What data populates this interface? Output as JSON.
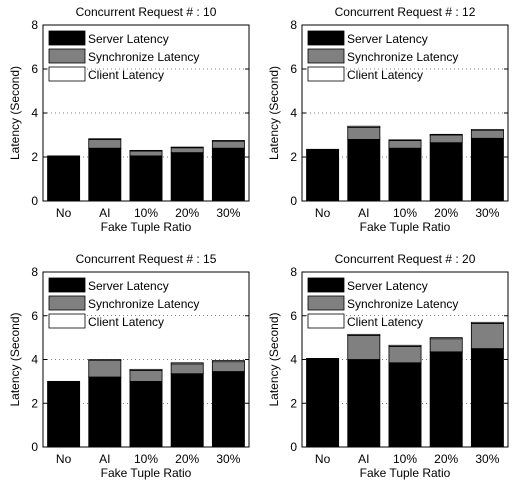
{
  "colors": {
    "server": "#000000",
    "synchronize": "#808080",
    "client": "#ffffff"
  },
  "chart_data": [
    {
      "type": "bar",
      "stacked": true,
      "title": "Concurrent Request # : 10",
      "xlabel": "Fake Tuple Ratio",
      "ylabel": "Latency (Second)",
      "categories": [
        "No",
        "AI",
        "10%",
        "20%",
        "30%"
      ],
      "ylim": [
        0,
        8
      ],
      "yticks": [
        "0",
        "2",
        "4",
        "6",
        "8"
      ],
      "grid": "y-dotted",
      "legend": "top-left",
      "series": [
        {
          "name": "Server Latency",
          "values": [
            2.05,
            2.4,
            2.05,
            2.2,
            2.4
          ]
        },
        {
          "name": "Synchronize Latency",
          "values": [
            0.0,
            0.4,
            0.22,
            0.22,
            0.32
          ]
        },
        {
          "name": "Client Latency",
          "values": [
            0.0,
            0.03,
            0.03,
            0.03,
            0.03
          ]
        }
      ]
    },
    {
      "type": "bar",
      "stacked": true,
      "title": "Concurrent Request # : 12",
      "xlabel": "Fake Tuple Ratio",
      "ylabel": "Latency (Second)",
      "categories": [
        "No",
        "AI",
        "10%",
        "20%",
        "30%"
      ],
      "ylim": [
        0,
        8
      ],
      "yticks": [
        "0",
        "2",
        "4",
        "6",
        "8"
      ],
      "grid": "y-dotted",
      "legend": "top-left",
      "series": [
        {
          "name": "Server Latency",
          "values": [
            2.35,
            2.8,
            2.4,
            2.65,
            2.85
          ]
        },
        {
          "name": "Synchronize Latency",
          "values": [
            0.0,
            0.55,
            0.35,
            0.35,
            0.35
          ]
        },
        {
          "name": "Client Latency",
          "values": [
            0.0,
            0.05,
            0.03,
            0.03,
            0.05
          ]
        }
      ]
    },
    {
      "type": "bar",
      "stacked": true,
      "title": "Concurrent Request # : 15",
      "xlabel": "Fake Tuple Ratio",
      "ylabel": "Latency (Second)",
      "categories": [
        "No",
        "AI",
        "10%",
        "20%",
        "30%"
      ],
      "ylim": [
        0,
        8
      ],
      "yticks": [
        "0",
        "2",
        "4",
        "6",
        "8"
      ],
      "grid": "y-dotted",
      "legend": "top-left",
      "series": [
        {
          "name": "Server Latency",
          "values": [
            3.0,
            3.2,
            3.0,
            3.35,
            3.45
          ]
        },
        {
          "name": "Synchronize Latency",
          "values": [
            0.0,
            0.75,
            0.5,
            0.45,
            0.45
          ]
        },
        {
          "name": "Client Latency",
          "values": [
            0.0,
            0.05,
            0.05,
            0.05,
            0.05
          ]
        }
      ]
    },
    {
      "type": "bar",
      "stacked": true,
      "title": "Concurrent Request # : 20",
      "xlabel": "Fake Tuple Ratio",
      "ylabel": "Latency (Second)",
      "categories": [
        "No",
        "AI",
        "10%",
        "20%",
        "30%"
      ],
      "ylim": [
        0,
        8
      ],
      "yticks": [
        "0",
        "2",
        "4",
        "6",
        "8"
      ],
      "grid": "y-dotted",
      "legend": "top-left",
      "series": [
        {
          "name": "Server Latency",
          "values": [
            4.05,
            4.0,
            3.85,
            4.35,
            4.5
          ]
        },
        {
          "name": "Synchronize Latency",
          "values": [
            0.0,
            1.1,
            0.75,
            0.6,
            1.15
          ]
        },
        {
          "name": "Client Latency",
          "values": [
            0.0,
            0.05,
            0.05,
            0.05,
            0.05
          ]
        }
      ]
    }
  ]
}
